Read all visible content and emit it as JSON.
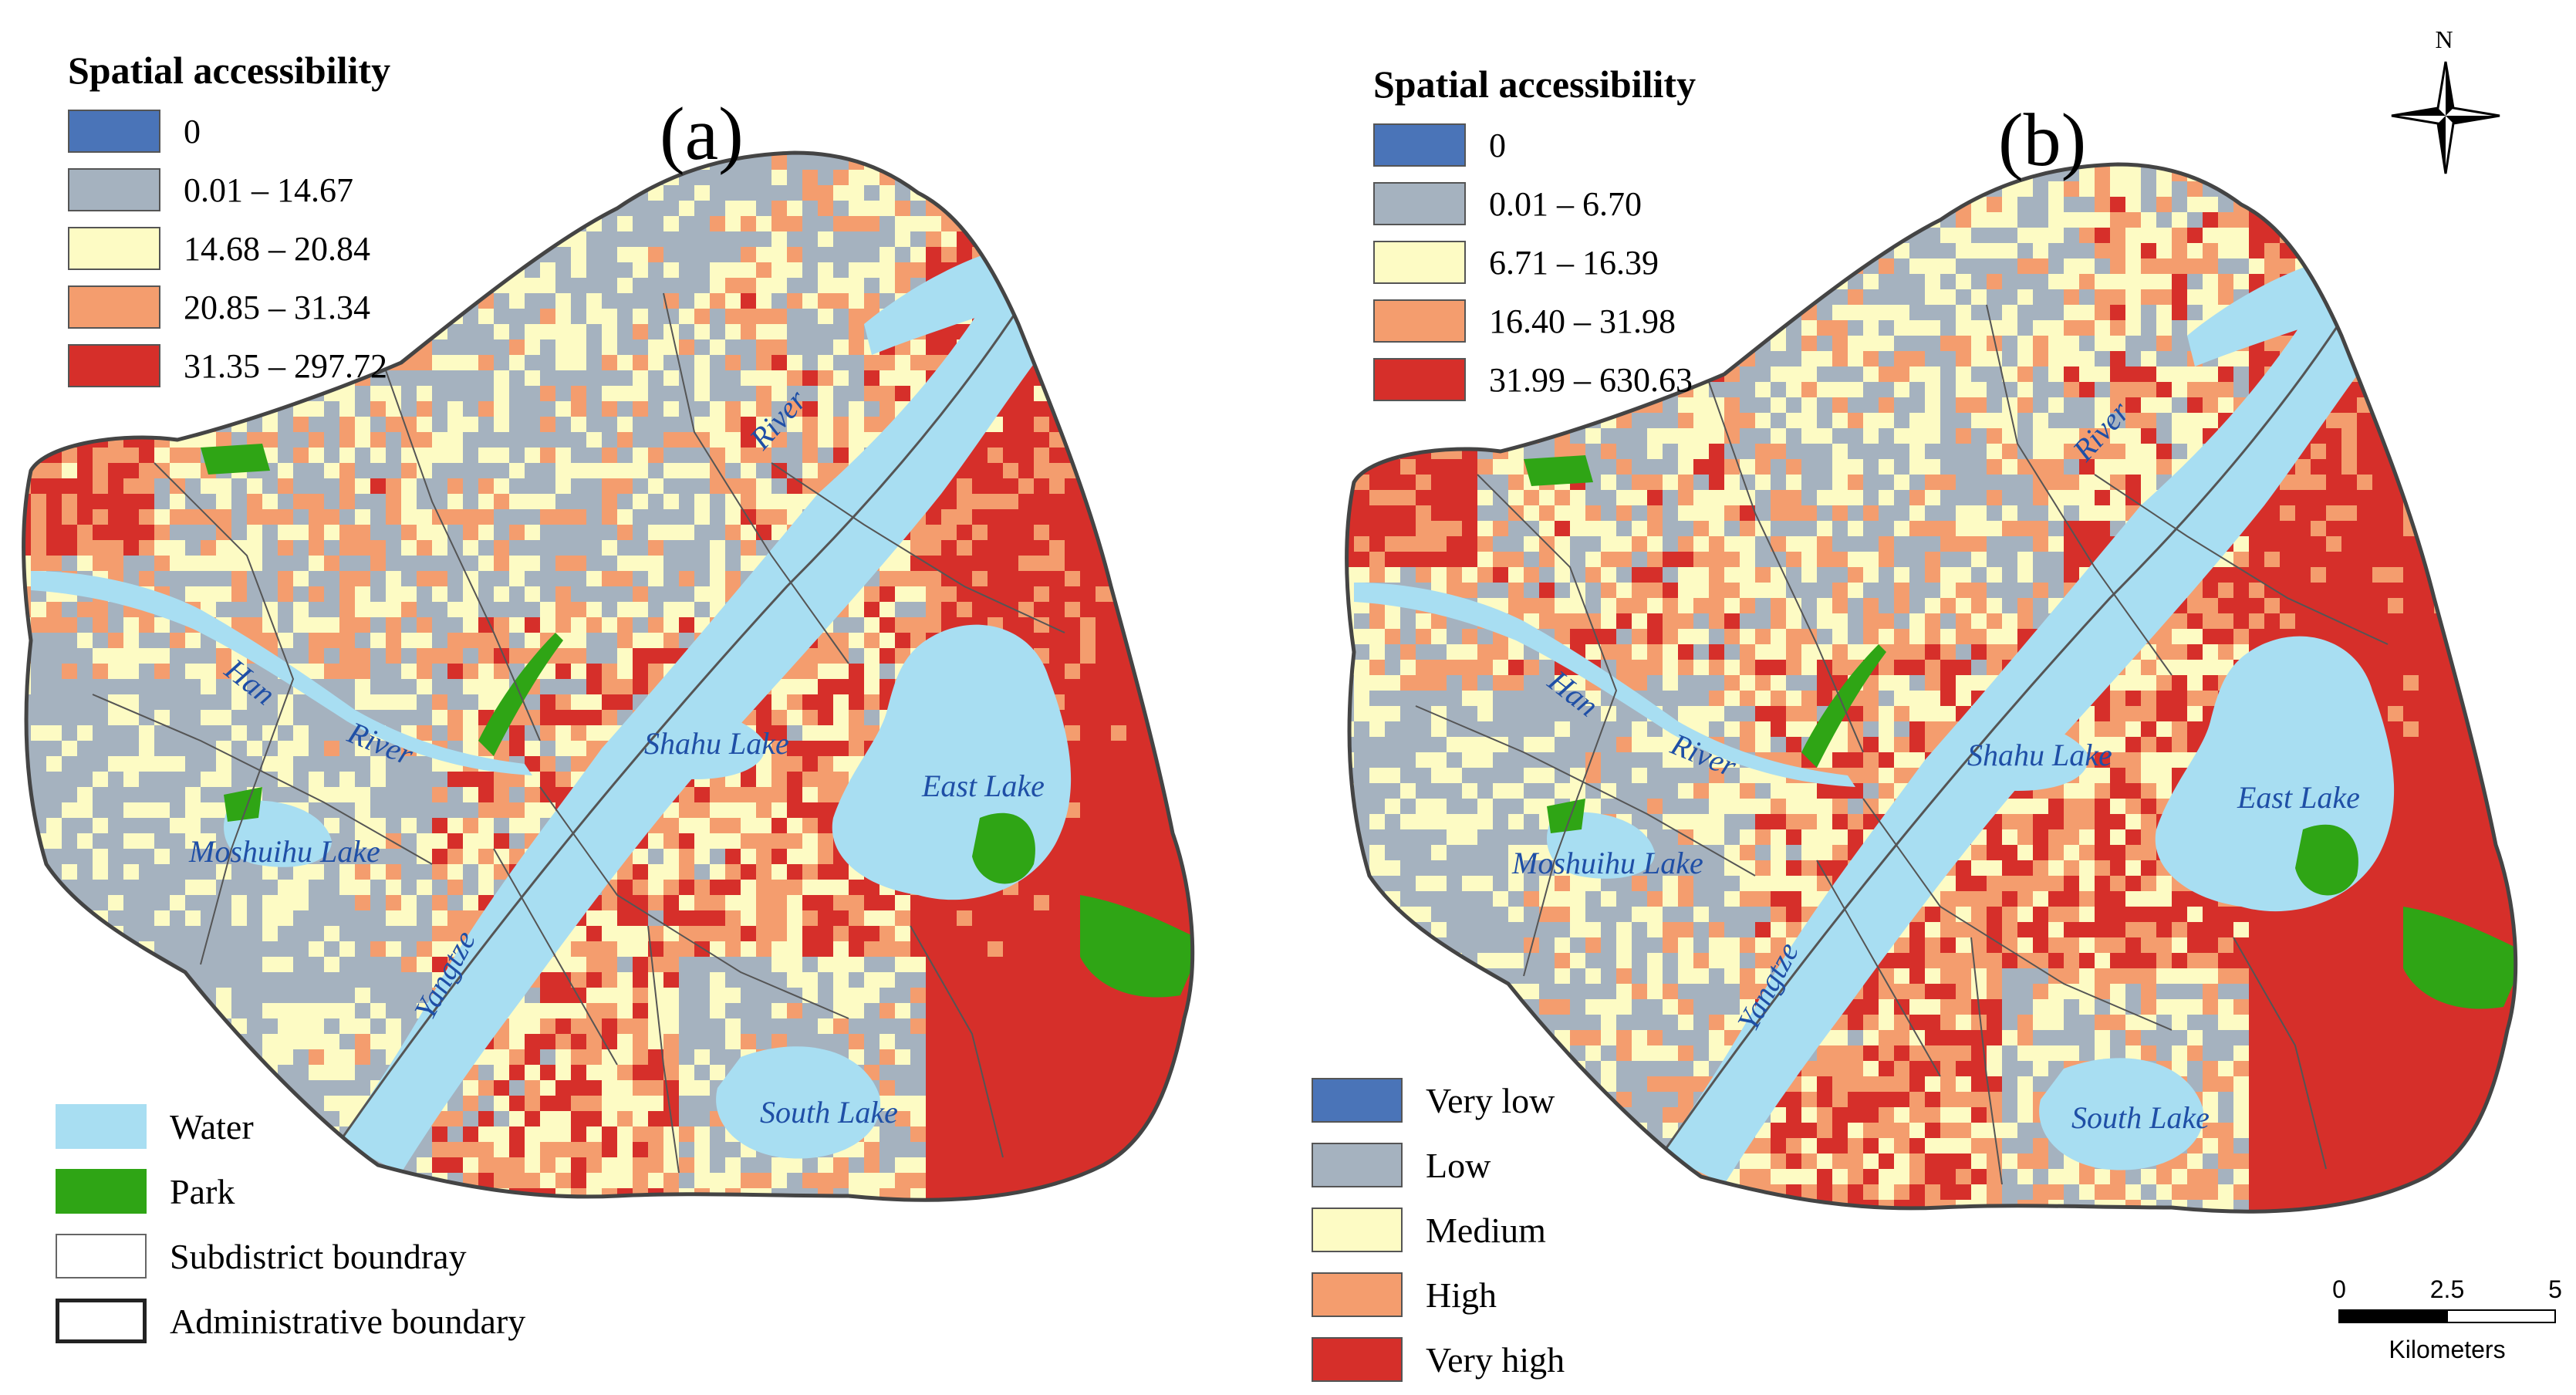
{
  "colors": {
    "very_low": "#4a74b8",
    "low": "#a5b2bf",
    "medium": "#fdfbc4",
    "high": "#f49d6e",
    "very_high": "#d62f2a",
    "water": "#a8def2",
    "park": "#2fa515",
    "boundary": "#555555",
    "label_blue": "#1f4fa6"
  },
  "panels": [
    {
      "id": "a",
      "label": "(a)",
      "legend": {
        "title": "Spatial accessibility",
        "classes": [
          {
            "range": "0",
            "color": "#4a74b8"
          },
          {
            "range": "0.01 – 14.67",
            "color": "#a5b2bf"
          },
          {
            "range": "14.68 – 20.84",
            "color": "#fdfbc4"
          },
          {
            "range": "20.85 – 31.34",
            "color": "#f49d6e"
          },
          {
            "range": "31.35 – 297.72",
            "color": "#d62f2a"
          }
        ]
      },
      "place_labels": {
        "river": "River",
        "han": "Han",
        "han_river": "River",
        "shahu": "Shahu Lake",
        "east": "East Lake",
        "moshuihu": "Moshuihu Lake",
        "yangtze": "Yangtze",
        "south": "South Lake"
      }
    },
    {
      "id": "b",
      "label": "(b)",
      "legend": {
        "title": "Spatial accessibility",
        "classes": [
          {
            "range": "0",
            "color": "#4a74b8"
          },
          {
            "range": "0.01 – 6.70",
            "color": "#a5b2bf"
          },
          {
            "range": "6.71 – 16.39",
            "color": "#fdfbc4"
          },
          {
            "range": "16.40 – 31.98",
            "color": "#f49d6e"
          },
          {
            "range": "31.99 – 630.63",
            "color": "#d62f2a"
          }
        ]
      },
      "place_labels": {
        "river": "River",
        "han": "Han",
        "han_river": "River",
        "shahu": "Shahu Lake",
        "east": "East Lake",
        "moshuihu": "Moshuihu Lake",
        "yangtze": "Yangtze",
        "south": "South Lake"
      }
    }
  ],
  "feature_legend": [
    {
      "label": "Water",
      "type": "water"
    },
    {
      "label": "Park",
      "type": "park"
    },
    {
      "label": "Subdistrict boundray",
      "type": "subdistrict"
    },
    {
      "label": "Administrative boundary",
      "type": "admin"
    }
  ],
  "level_legend": [
    {
      "label": "Very low",
      "color": "#4a74b8"
    },
    {
      "label": "Low",
      "color": "#a5b2bf"
    },
    {
      "label": "Medium",
      "color": "#fdfbc4"
    },
    {
      "label": "High",
      "color": "#f49d6e"
    },
    {
      "label": "Very high",
      "color": "#d62f2a"
    }
  ],
  "north_arrow": {
    "label": "N"
  },
  "scale_bar": {
    "ticks": [
      "0",
      "2.5",
      "5"
    ],
    "unit": "Kilometers"
  }
}
